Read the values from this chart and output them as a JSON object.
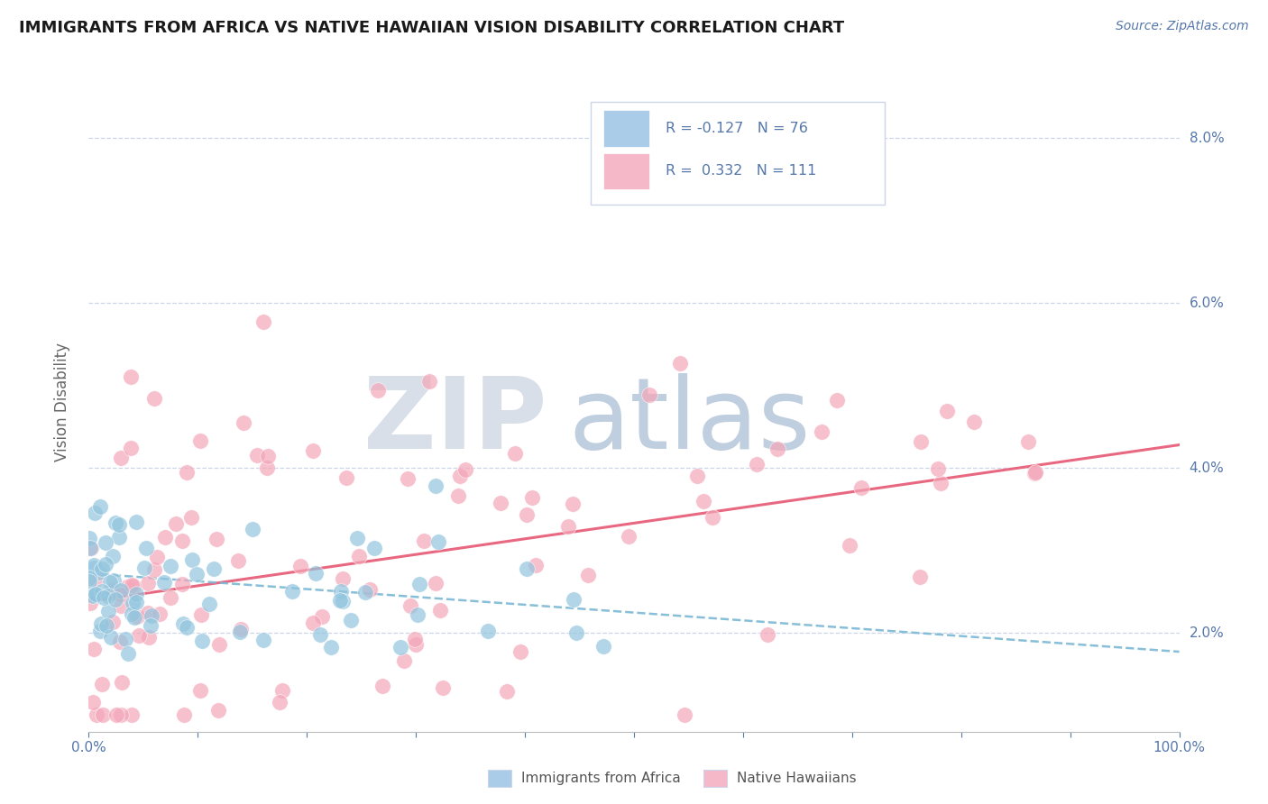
{
  "title": "IMMIGRANTS FROM AFRICA VS NATIVE HAWAIIAN VISION DISABILITY CORRELATION CHART",
  "source": "Source: ZipAtlas.com",
  "ylabel": "Vision Disability",
  "legend1_label": "R = -0.127   N = 76",
  "legend2_label": "R =  0.332   N = 111",
  "legend1_series": "Immigrants from Africa",
  "legend2_series": "Native Hawaiians",
  "blue_color": "#92c5de",
  "pink_color": "#f4a6b8",
  "blue_line_color": "#7bb8d4",
  "pink_line_color": "#e8607a",
  "xmin": 0,
  "xmax": 100,
  "ymin": 0.8,
  "ymax": 8.8,
  "yticks": [
    2.0,
    4.0,
    6.0,
    8.0
  ],
  "background_color": "#ffffff",
  "grid_color": "#ccd6e8",
  "axis_color": "#5577aa",
  "blue_intercept": 2.72,
  "blue_slope": -0.0095,
  "pink_intercept": 2.38,
  "pink_slope": 0.019,
  "watermark_zip_color": "#d8dfe8",
  "watermark_atlas_color": "#c0cfe0"
}
